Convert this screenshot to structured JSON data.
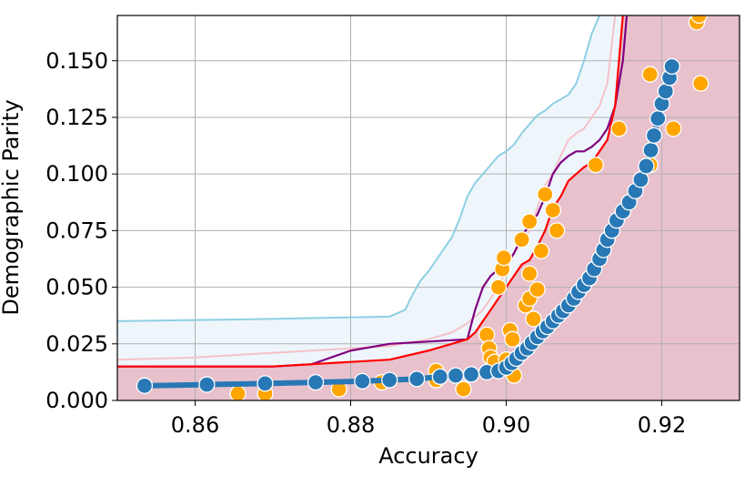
{
  "chart_data": {
    "type": "scatter",
    "xlabel": "Accuracy",
    "ylabel": "Demographic Parity",
    "xlim": [
      0.85,
      0.93
    ],
    "ylim": [
      0.0,
      0.17
    ],
    "grid": true,
    "x_ticks": [
      0.86,
      0.88,
      0.9,
      0.92
    ],
    "x_tick_labels": [
      "0.86",
      "0.88",
      "0.90",
      "0.92"
    ],
    "y_ticks": [
      0.0,
      0.025,
      0.05,
      0.075,
      0.1,
      0.125,
      0.15
    ],
    "y_tick_labels": [
      "0.000",
      "0.025",
      "0.050",
      "0.075",
      "0.100",
      "0.125",
      "0.150"
    ],
    "colors": {
      "shaded_region": "#e8c1cd",
      "light_band": "#eef6fb",
      "skyblue": "#8ecfe4",
      "pink": "#f6c1c9",
      "purple": "#800080",
      "red": "#ff0000",
      "blue": "#2878b5",
      "orange": "#ffa500",
      "grid": "#b0b0b0"
    },
    "series": [
      {
        "style": "line",
        "color": "skyblue",
        "x": [
          0.85,
          0.86,
          0.87,
          0.877,
          0.885,
          0.887,
          0.888,
          0.889,
          0.89,
          0.891,
          0.892,
          0.893,
          0.894,
          0.895,
          0.896,
          0.897,
          0.898,
          0.899,
          0.9,
          0.901,
          0.902,
          0.903,
          0.904,
          0.905,
          0.906,
          0.907,
          0.908,
          0.909,
          0.91,
          0.911,
          0.912
        ],
        "y": [
          0.035,
          0.0355,
          0.036,
          0.0365,
          0.037,
          0.04,
          0.047,
          0.053,
          0.057,
          0.062,
          0.067,
          0.072,
          0.08,
          0.09,
          0.096,
          0.1,
          0.104,
          0.108,
          0.11,
          0.113,
          0.118,
          0.122,
          0.126,
          0.128,
          0.131,
          0.133,
          0.135,
          0.14,
          0.15,
          0.162,
          0.17
        ]
      },
      {
        "style": "line",
        "color": "pink",
        "x": [
          0.85,
          0.86,
          0.87,
          0.875,
          0.88,
          0.885,
          0.89,
          0.893,
          0.895,
          0.897,
          0.898,
          0.899,
          0.9,
          0.901,
          0.902,
          0.903,
          0.904,
          0.905,
          0.906,
          0.907,
          0.908,
          0.909,
          0.91,
          0.911,
          0.912,
          0.913,
          0.914
        ],
        "y": [
          0.018,
          0.019,
          0.021,
          0.022,
          0.023,
          0.024,
          0.027,
          0.03,
          0.034,
          0.04,
          0.045,
          0.05,
          0.058,
          0.065,
          0.07,
          0.075,
          0.085,
          0.095,
          0.1,
          0.108,
          0.115,
          0.118,
          0.12,
          0.125,
          0.13,
          0.14,
          0.17
        ]
      },
      {
        "style": "line",
        "color": "purple",
        "x": [
          0.85,
          0.86,
          0.87,
          0.875,
          0.88,
          0.885,
          0.89,
          0.895,
          0.896,
          0.897,
          0.898,
          0.899,
          0.9,
          0.901,
          0.902,
          0.903,
          0.904,
          0.905,
          0.906,
          0.907,
          0.908,
          0.909,
          0.91,
          0.911,
          0.912,
          0.913,
          0.914,
          0.915,
          0.9155
        ],
        "y": [
          0.015,
          0.015,
          0.015,
          0.016,
          0.022,
          0.025,
          0.026,
          0.027,
          0.04,
          0.05,
          0.055,
          0.058,
          0.06,
          0.065,
          0.072,
          0.078,
          0.082,
          0.09,
          0.1,
          0.105,
          0.108,
          0.11,
          0.11,
          0.112,
          0.115,
          0.12,
          0.13,
          0.15,
          0.17
        ]
      },
      {
        "style": "line",
        "color": "red",
        "x": [
          0.85,
          0.86,
          0.87,
          0.875,
          0.88,
          0.885,
          0.89,
          0.893,
          0.895,
          0.896,
          0.897,
          0.898,
          0.899,
          0.9,
          0.901,
          0.902,
          0.903,
          0.904,
          0.905,
          0.906,
          0.907,
          0.908,
          0.909,
          0.91,
          0.911,
          0.912,
          0.913,
          0.914,
          0.915
        ],
        "y": [
          0.015,
          0.015,
          0.015,
          0.016,
          0.017,
          0.018,
          0.022,
          0.025,
          0.027,
          0.03,
          0.035,
          0.04,
          0.045,
          0.05,
          0.055,
          0.06,
          0.062,
          0.068,
          0.075,
          0.085,
          0.09,
          0.097,
          0.1,
          0.103,
          0.105,
          0.11,
          0.115,
          0.13,
          0.17
        ]
      },
      {
        "style": "dots",
        "color": "orange",
        "points": [
          [
            0.8655,
            0.003
          ],
          [
            0.869,
            0.003
          ],
          [
            0.8785,
            0.005
          ],
          [
            0.884,
            0.008
          ],
          [
            0.891,
            0.013
          ],
          [
            0.891,
            0.009
          ],
          [
            0.8945,
            0.005
          ],
          [
            0.8975,
            0.029
          ],
          [
            0.8978,
            0.023
          ],
          [
            0.898,
            0.019
          ],
          [
            0.8985,
            0.017
          ],
          [
            0.899,
            0.05
          ],
          [
            0.8995,
            0.058
          ],
          [
            0.8997,
            0.063
          ],
          [
            0.9,
            0.018
          ],
          [
            0.9005,
            0.031
          ],
          [
            0.9008,
            0.027
          ],
          [
            0.901,
            0.011
          ],
          [
            0.902,
            0.071
          ],
          [
            0.9025,
            0.042
          ],
          [
            0.903,
            0.045
          ],
          [
            0.903,
            0.056
          ],
          [
            0.903,
            0.079
          ],
          [
            0.9035,
            0.036
          ],
          [
            0.904,
            0.049
          ],
          [
            0.9045,
            0.066
          ],
          [
            0.905,
            0.091
          ],
          [
            0.906,
            0.084
          ],
          [
            0.9065,
            0.075
          ],
          [
            0.9115,
            0.104
          ],
          [
            0.9145,
            0.12
          ],
          [
            0.9185,
            0.144
          ],
          [
            0.9185,
            0.104
          ],
          [
            0.9215,
            0.12
          ],
          [
            0.9245,
            0.167
          ],
          [
            0.9248,
            0.17
          ],
          [
            0.925,
            0.14
          ]
        ]
      },
      {
        "style": "dots-line",
        "color": "blue",
        "points": [
          [
            0.8535,
            0.0065
          ],
          [
            0.8615,
            0.007
          ],
          [
            0.869,
            0.0075
          ],
          [
            0.8755,
            0.008
          ],
          [
            0.8815,
            0.0085
          ],
          [
            0.885,
            0.009
          ],
          [
            0.8885,
            0.0095
          ],
          [
            0.8915,
            0.0105
          ],
          [
            0.8935,
            0.011
          ],
          [
            0.8955,
            0.0115
          ],
          [
            0.8975,
            0.0125
          ],
          [
            0.899,
            0.013
          ],
          [
            0.9,
            0.0145
          ],
          [
            0.9007,
            0.0165
          ],
          [
            0.9013,
            0.0185
          ],
          [
            0.902,
            0.021
          ],
          [
            0.9027,
            0.023
          ],
          [
            0.9033,
            0.0255
          ],
          [
            0.904,
            0.028
          ],
          [
            0.9047,
            0.0305
          ],
          [
            0.9053,
            0.0325
          ],
          [
            0.906,
            0.035
          ],
          [
            0.9067,
            0.0375
          ],
          [
            0.9073,
            0.0395
          ],
          [
            0.908,
            0.042
          ],
          [
            0.9087,
            0.045
          ],
          [
            0.9093,
            0.048
          ],
          [
            0.91,
            0.051
          ],
          [
            0.9107,
            0.054
          ],
          [
            0.9113,
            0.058
          ],
          [
            0.912,
            0.0625
          ],
          [
            0.9125,
            0.0665
          ],
          [
            0.913,
            0.071
          ],
          [
            0.9136,
            0.075
          ],
          [
            0.9142,
            0.0795
          ],
          [
            0.915,
            0.0835
          ],
          [
            0.9158,
            0.0875
          ],
          [
            0.9166,
            0.0925
          ],
          [
            0.9173,
            0.0975
          ],
          [
            0.918,
            0.1035
          ],
          [
            0.9186,
            0.1105
          ],
          [
            0.919,
            0.117
          ],
          [
            0.9195,
            0.1245
          ],
          [
            0.92,
            0.131
          ],
          [
            0.9205,
            0.1365
          ],
          [
            0.921,
            0.1425
          ],
          [
            0.9213,
            0.1475
          ]
        ]
      }
    ]
  }
}
